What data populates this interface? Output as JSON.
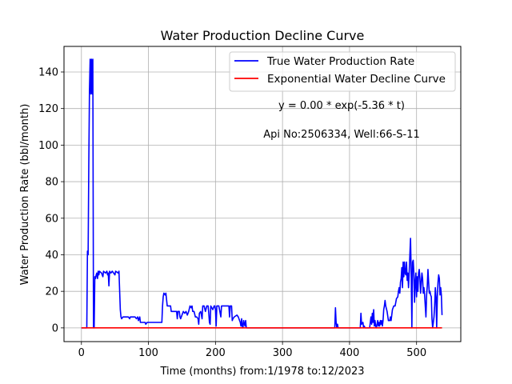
{
  "chart_data": {
    "type": "line",
    "title": "Water Production Decline Curve",
    "xlabel": "Time (months) from:1/1978 to:12/2023",
    "ylabel": "Water Production Rate (bbl/month)",
    "xlim": [
      -26,
      566
    ],
    "ylim": [
      -7.5,
      154
    ],
    "x_ticks": [
      0,
      100,
      200,
      300,
      400,
      500
    ],
    "y_ticks": [
      0,
      20,
      40,
      60,
      80,
      100,
      120,
      140
    ],
    "grid": true,
    "legend_position": "top-right",
    "annotations": [
      "y = 0.00 * exp(-5.36 * t)",
      "Api No:2506334, Well:66-S-11"
    ],
    "series": [
      {
        "name": "True Water Production Rate",
        "color": "#0000ff",
        "points": [
          [
            0,
            0
          ],
          [
            8,
            0
          ],
          [
            9,
            42
          ],
          [
            10,
            40
          ],
          [
            11,
            90
          ],
          [
            12,
            130
          ],
          [
            13,
            147
          ],
          [
            14,
            128
          ],
          [
            15,
            147
          ],
          [
            16,
            128
          ],
          [
            17,
            147
          ],
          [
            18,
            0
          ],
          [
            19,
            0
          ],
          [
            20,
            28
          ],
          [
            21,
            27
          ],
          [
            22,
            29
          ],
          [
            23,
            30
          ],
          [
            24,
            27
          ],
          [
            25,
            31
          ],
          [
            26,
            29
          ],
          [
            27,
            31
          ],
          [
            30,
            30
          ],
          [
            32,
            28
          ],
          [
            33,
            31
          ],
          [
            36,
            30
          ],
          [
            38,
            31
          ],
          [
            39,
            29
          ],
          [
            40,
            30
          ],
          [
            41,
            23
          ],
          [
            42,
            31
          ],
          [
            44,
            30
          ],
          [
            46,
            31
          ],
          [
            48,
            30
          ],
          [
            50,
            29
          ],
          [
            51,
            31
          ],
          [
            55,
            30
          ],
          [
            56,
            31
          ],
          [
            58,
            10
          ],
          [
            59,
            6
          ],
          [
            60,
            5
          ],
          [
            62,
            6
          ],
          [
            70,
            6
          ],
          [
            72,
            5
          ],
          [
            73,
            6
          ],
          [
            80,
            6
          ],
          [
            82,
            5
          ],
          [
            84,
            6
          ],
          [
            85,
            4
          ],
          [
            87,
            6
          ],
          [
            88,
            3
          ],
          [
            95,
            3
          ],
          [
            96,
            2
          ],
          [
            98,
            3
          ],
          [
            110,
            3
          ],
          [
            112,
            3
          ],
          [
            120,
            3
          ],
          [
            121,
            12
          ],
          [
            122,
            17
          ],
          [
            123,
            19
          ],
          [
            125,
            18
          ],
          [
            126,
            19
          ],
          [
            128,
            12
          ],
          [
            130,
            12
          ],
          [
            133,
            12
          ],
          [
            134,
            9
          ],
          [
            138,
            9
          ],
          [
            140,
            9
          ],
          [
            142,
            9
          ],
          [
            143,
            5
          ],
          [
            144,
            9
          ],
          [
            146,
            9
          ],
          [
            147,
            6
          ],
          [
            148,
            5
          ],
          [
            150,
            7
          ],
          [
            152,
            9
          ],
          [
            154,
            8
          ],
          [
            156,
            9
          ],
          [
            158,
            7
          ],
          [
            160,
            9
          ],
          [
            162,
            12
          ],
          [
            164,
            11
          ],
          [
            165,
            12
          ],
          [
            166,
            9
          ],
          [
            168,
            9
          ],
          [
            170,
            6
          ],
          [
            172,
            6
          ],
          [
            174,
            5
          ],
          [
            175,
            2
          ],
          [
            176,
            8
          ],
          [
            178,
            9
          ],
          [
            180,
            5
          ],
          [
            181,
            12
          ],
          [
            183,
            12
          ],
          [
            185,
            9
          ],
          [
            187,
            12
          ],
          [
            189,
            12
          ],
          [
            190,
            8
          ],
          [
            191,
            3
          ],
          [
            192,
            2
          ],
          [
            193,
            12
          ],
          [
            196,
            10
          ],
          [
            198,
            12
          ],
          [
            199,
            12
          ],
          [
            200,
            10
          ],
          [
            201,
            1
          ],
          [
            202,
            12
          ],
          [
            205,
            12
          ],
          [
            208,
            6
          ],
          [
            209,
            12
          ],
          [
            212,
            12
          ],
          [
            216,
            12
          ],
          [
            220,
            12
          ],
          [
            221,
            6
          ],
          [
            222,
            12
          ],
          [
            224,
            12
          ],
          [
            225,
            4
          ],
          [
            226,
            5
          ],
          [
            228,
            6
          ],
          [
            232,
            7
          ],
          [
            234,
            6
          ],
          [
            236,
            4
          ],
          [
            237,
            3
          ],
          [
            238,
            1
          ],
          [
            239,
            5
          ],
          [
            240,
            1
          ],
          [
            241,
            0
          ],
          [
            242,
            4
          ],
          [
            244,
            1
          ],
          [
            245,
            4
          ],
          [
            246,
            0
          ],
          [
            260,
            0
          ],
          [
            300,
            0
          ],
          [
            340,
            0
          ],
          [
            378,
            0
          ],
          [
            379,
            11
          ],
          [
            380,
            3
          ],
          [
            381,
            0
          ],
          [
            382,
            2
          ],
          [
            383,
            0
          ],
          [
            400,
            0
          ],
          [
            416,
            0
          ],
          [
            417,
            8
          ],
          [
            418,
            2
          ],
          [
            420,
            3
          ],
          [
            421,
            0
          ],
          [
            422,
            1
          ],
          [
            423,
            0
          ],
          [
            430,
            0
          ],
          [
            431,
            3
          ],
          [
            432,
            6
          ],
          [
            433,
            2
          ],
          [
            434,
            8
          ],
          [
            435,
            3
          ],
          [
            436,
            10
          ],
          [
            437,
            1
          ],
          [
            438,
            4
          ],
          [
            439,
            1
          ],
          [
            440,
            0
          ],
          [
            442,
            4
          ],
          [
            443,
            1
          ],
          [
            444,
            3
          ],
          [
            445,
            1
          ],
          [
            446,
            4
          ],
          [
            447,
            2
          ],
          [
            448,
            4
          ],
          [
            449,
            1
          ],
          [
            450,
            4
          ],
          [
            451,
            10
          ],
          [
            452,
            12
          ],
          [
            453,
            15
          ],
          [
            454,
            12
          ],
          [
            456,
            9
          ],
          [
            458,
            4
          ],
          [
            460,
            4
          ],
          [
            461,
            6
          ],
          [
            462,
            4
          ],
          [
            464,
            10
          ],
          [
            466,
            12
          ],
          [
            468,
            12
          ],
          [
            470,
            16
          ],
          [
            472,
            17
          ],
          [
            473,
            20
          ],
          [
            474,
            22
          ],
          [
            475,
            19
          ],
          [
            476,
            25
          ],
          [
            477,
            27
          ],
          [
            478,
            33
          ],
          [
            479,
            22
          ],
          [
            480,
            36
          ],
          [
            481,
            28
          ],
          [
            482,
            36
          ],
          [
            483,
            30
          ],
          [
            484,
            29
          ],
          [
            485,
            36
          ],
          [
            486,
            26
          ],
          [
            487,
            30
          ],
          [
            488,
            22
          ],
          [
            489,
            30
          ],
          [
            490,
            40
          ],
          [
            491,
            49
          ],
          [
            492,
            30
          ],
          [
            493,
            0
          ],
          [
            494,
            36
          ],
          [
            495,
            37
          ],
          [
            496,
            30
          ],
          [
            497,
            14
          ],
          [
            498,
            25
          ],
          [
            499,
            30
          ],
          [
            500,
            17
          ],
          [
            501,
            28
          ],
          [
            502,
            20
          ],
          [
            503,
            30
          ],
          [
            504,
            32
          ],
          [
            505,
            27
          ],
          [
            506,
            19
          ],
          [
            507,
            25
          ],
          [
            508,
            30
          ],
          [
            509,
            27
          ],
          [
            510,
            19
          ],
          [
            511,
            22
          ],
          [
            512,
            18
          ],
          [
            514,
            6
          ],
          [
            515,
            18
          ],
          [
            516,
            23
          ],
          [
            517,
            32
          ],
          [
            518,
            25
          ],
          [
            519,
            19
          ],
          [
            520,
            20
          ],
          [
            521,
            18
          ],
          [
            522,
            17
          ],
          [
            523,
            5
          ],
          [
            524,
            0
          ],
          [
            526,
            6
          ],
          [
            527,
            12
          ],
          [
            528,
            22
          ],
          [
            529,
            17
          ],
          [
            530,
            0
          ],
          [
            531,
            17
          ],
          [
            532,
            25
          ],
          [
            533,
            29
          ],
          [
            534,
            27
          ],
          [
            535,
            18
          ],
          [
            536,
            22
          ],
          [
            537,
            18
          ],
          [
            538,
            7
          ]
        ]
      },
      {
        "name": "Exponential Water Decline Curve",
        "color": "#ff0000",
        "points": [
          [
            0,
            0
          ],
          [
            100,
            0
          ],
          [
            200,
            0
          ],
          [
            300,
            0
          ],
          [
            400,
            0
          ],
          [
            500,
            0
          ],
          [
            538,
            0
          ]
        ]
      }
    ]
  }
}
